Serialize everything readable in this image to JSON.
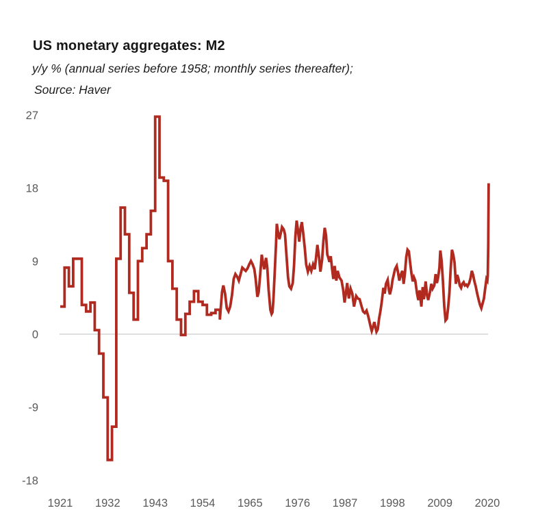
{
  "header": {
    "title": "US monetary aggregates: M2",
    "subtitle": "y/y % (annual series before 1958; monthly series thereafter);",
    "source": "Source: Haver"
  },
  "chart_data": {
    "type": "line",
    "title": "US monetary aggregates: M2",
    "subtitle": "y/y % (annual series before 1958; monthly series thereafter);",
    "source": "Source: Haver",
    "series_name": "M2 year-over-year percent change",
    "line_color": "#B02A20",
    "zero_line_color": "#D9D9D9",
    "tick_label_color": "#595959",
    "xlabel": "",
    "ylabel": "",
    "ylim": [
      -18,
      27
    ],
    "xlim": [
      1921,
      2020.5
    ],
    "y_ticks": [
      27,
      18,
      9,
      0,
      -9,
      -18
    ],
    "x_ticks": [
      1921,
      1932,
      1943,
      1954,
      1965,
      1976,
      1987,
      1998,
      2009,
      2020
    ],
    "gridlines": "zero line only",
    "legend": "none",
    "annual": {
      "start_year": 1921,
      "end_year": 1957,
      "values": [
        3.4,
        8.2,
        5.9,
        9.3,
        9.3,
        3.6,
        2.8,
        3.9,
        0.5,
        -2.4,
        -7.8,
        -15.5,
        -11.4,
        9.3,
        15.6,
        12.3,
        5.1,
        1.8,
        9.0,
        10.6,
        12.3,
        15.2,
        26.8,
        19.3,
        18.9,
        9.0,
        5.6,
        1.8,
        -0.1,
        2.5,
        4.0,
        5.3,
        4.0,
        3.6,
        2.4,
        2.6,
        3.0
      ]
    },
    "monthly": [
      [
        1958.0,
        1.8
      ],
      [
        1958.2,
        3.2
      ],
      [
        1958.5,
        5.2
      ],
      [
        1958.8,
        6.0
      ],
      [
        1959.2,
        5.0
      ],
      [
        1959.6,
        3.2
      ],
      [
        1960.0,
        2.8
      ],
      [
        1960.4,
        3.4
      ],
      [
        1960.8,
        4.8
      ],
      [
        1961.2,
        6.8
      ],
      [
        1961.6,
        7.4
      ],
      [
        1962.0,
        7.1
      ],
      [
        1962.4,
        6.6
      ],
      [
        1962.8,
        7.4
      ],
      [
        1963.2,
        8.2
      ],
      [
        1963.6,
        8.0
      ],
      [
        1964.0,
        7.8
      ],
      [
        1964.4,
        8.1
      ],
      [
        1964.8,
        8.6
      ],
      [
        1965.2,
        9.0
      ],
      [
        1965.6,
        8.6
      ],
      [
        1966.0,
        8.0
      ],
      [
        1966.3,
        6.8
      ],
      [
        1966.7,
        4.6
      ],
      [
        1967.0,
        5.2
      ],
      [
        1967.3,
        7.0
      ],
      [
        1967.7,
        9.8
      ],
      [
        1968.0,
        8.8
      ],
      [
        1968.3,
        8.0
      ],
      [
        1968.7,
        9.4
      ],
      [
        1969.0,
        8.2
      ],
      [
        1969.3,
        5.5
      ],
      [
        1969.7,
        3.0
      ],
      [
        1970.0,
        2.5
      ],
      [
        1970.2,
        2.7
      ],
      [
        1970.4,
        4.2
      ],
      [
        1970.7,
        7.5
      ],
      [
        1971.0,
        11.0
      ],
      [
        1971.2,
        13.6
      ],
      [
        1971.5,
        12.5
      ],
      [
        1971.8,
        11.7
      ],
      [
        1972.1,
        12.4
      ],
      [
        1972.4,
        13.2
      ],
      [
        1972.8,
        12.9
      ],
      [
        1973.1,
        12.3
      ],
      [
        1973.4,
        10.0
      ],
      [
        1973.8,
        7.0
      ],
      [
        1974.1,
        5.9
      ],
      [
        1974.5,
        5.6
      ],
      [
        1974.9,
        6.3
      ],
      [
        1975.2,
        8.5
      ],
      [
        1975.5,
        12.0
      ],
      [
        1975.8,
        14.0
      ],
      [
        1976.1,
        12.8
      ],
      [
        1976.4,
        11.4
      ],
      [
        1976.7,
        13.0
      ],
      [
        1977.0,
        13.8
      ],
      [
        1977.3,
        12.5
      ],
      [
        1977.7,
        10.5
      ],
      [
        1978.0,
        8.6
      ],
      [
        1978.4,
        7.7
      ],
      [
        1978.8,
        8.4
      ],
      [
        1979.2,
        7.8
      ],
      [
        1979.6,
        8.6
      ],
      [
        1980.0,
        8.0
      ],
      [
        1980.3,
        9.5
      ],
      [
        1980.6,
        11.0
      ],
      [
        1981.0,
        9.4
      ],
      [
        1981.3,
        7.7
      ],
      [
        1981.7,
        9.2
      ],
      [
        1982.0,
        11.5
      ],
      [
        1982.3,
        13.1
      ],
      [
        1982.6,
        12.2
      ],
      [
        1982.9,
        9.8
      ],
      [
        1983.1,
        9.5
      ],
      [
        1983.4,
        8.9
      ],
      [
        1983.7,
        9.6
      ],
      [
        1984.0,
        8.1
      ],
      [
        1984.3,
        6.8
      ],
      [
        1984.6,
        8.4
      ],
      [
        1985.0,
        6.6
      ],
      [
        1985.3,
        7.8
      ],
      [
        1985.7,
        7.0
      ],
      [
        1986.2,
        6.6
      ],
      [
        1986.6,
        5.4
      ],
      [
        1986.9,
        3.9
      ],
      [
        1987.2,
        5.0
      ],
      [
        1987.5,
        6.3
      ],
      [
        1987.9,
        4.4
      ],
      [
        1988.3,
        5.6
      ],
      [
        1988.7,
        5.0
      ],
      [
        1989.1,
        3.4
      ],
      [
        1989.6,
        4.7
      ],
      [
        1990.0,
        4.4
      ],
      [
        1990.4,
        4.3
      ],
      [
        1990.8,
        3.5
      ],
      [
        1991.2,
        2.8
      ],
      [
        1991.6,
        2.6
      ],
      [
        1992.0,
        2.9
      ],
      [
        1992.4,
        2.2
      ],
      [
        1992.7,
        1.5
      ],
      [
        1993.0,
        0.8
      ],
      [
        1993.2,
        0.4
      ],
      [
        1993.5,
        0.9
      ],
      [
        1993.8,
        1.5
      ],
      [
        1994.0,
        1.0
      ],
      [
        1994.3,
        0.3
      ],
      [
        1994.6,
        0.6
      ],
      [
        1994.9,
        1.9
      ],
      [
        1995.2,
        2.8
      ],
      [
        1995.5,
        3.9
      ],
      [
        1995.9,
        5.7
      ],
      [
        1996.2,
        5.0
      ],
      [
        1996.5,
        6.2
      ],
      [
        1996.9,
        6.7
      ],
      [
        1997.2,
        5.4
      ],
      [
        1997.4,
        4.9
      ],
      [
        1997.8,
        5.8
      ],
      [
        1998.0,
        6.6
      ],
      [
        1998.3,
        7.3
      ],
      [
        1998.6,
        8.0
      ],
      [
        1999.0,
        8.4
      ],
      [
        1999.3,
        7.6
      ],
      [
        1999.6,
        6.6
      ],
      [
        2000.0,
        7.4
      ],
      [
        2000.3,
        7.8
      ],
      [
        2000.6,
        6.2
      ],
      [
        2000.9,
        7.5
      ],
      [
        2001.2,
        9.5
      ],
      [
        2001.5,
        10.4
      ],
      [
        2001.8,
        10.2
      ],
      [
        2002.1,
        8.8
      ],
      [
        2002.4,
        7.5
      ],
      [
        2002.7,
        6.5
      ],
      [
        2003.0,
        7.0
      ],
      [
        2003.3,
        6.6
      ],
      [
        2003.7,
        5.0
      ],
      [
        2004.0,
        4.2
      ],
      [
        2004.3,
        5.4
      ],
      [
        2004.7,
        3.4
      ],
      [
        2005.0,
        5.8
      ],
      [
        2005.3,
        4.3
      ],
      [
        2005.7,
        6.5
      ],
      [
        2006.0,
        4.8
      ],
      [
        2006.3,
        4.2
      ],
      [
        2006.7,
        5.2
      ],
      [
        2007.0,
        6.2
      ],
      [
        2007.3,
        5.6
      ],
      [
        2007.7,
        6.0
      ],
      [
        2008.0,
        7.4
      ],
      [
        2008.3,
        6.3
      ],
      [
        2008.6,
        7.0
      ],
      [
        2008.9,
        8.2
      ],
      [
        2009.1,
        10.3
      ],
      [
        2009.4,
        9.0
      ],
      [
        2009.7,
        6.5
      ],
      [
        2010.0,
        3.5
      ],
      [
        2010.3,
        1.7
      ],
      [
        2010.6,
        1.9
      ],
      [
        2010.9,
        3.2
      ],
      [
        2011.2,
        5.0
      ],
      [
        2011.5,
        8.0
      ],
      [
        2011.8,
        10.4
      ],
      [
        2012.1,
        9.8
      ],
      [
        2012.4,
        8.8
      ],
      [
        2012.7,
        6.2
      ],
      [
        2013.0,
        7.3
      ],
      [
        2013.3,
        6.8
      ],
      [
        2013.6,
        6.0
      ],
      [
        2013.9,
        5.7
      ],
      [
        2014.2,
        6.2
      ],
      [
        2014.5,
        6.4
      ],
      [
        2014.8,
        6.0
      ],
      [
        2015.1,
        6.1
      ],
      [
        2015.4,
        5.9
      ],
      [
        2015.8,
        6.3
      ],
      [
        2016.1,
        6.9
      ],
      [
        2016.4,
        7.8
      ],
      [
        2016.7,
        7.3
      ],
      [
        2017.0,
        6.5
      ],
      [
        2017.3,
        5.9
      ],
      [
        2017.6,
        5.1
      ],
      [
        2018.0,
        4.2
      ],
      [
        2018.3,
        3.6
      ],
      [
        2018.6,
        3.2
      ],
      [
        2018.9,
        3.8
      ],
      [
        2019.2,
        4.4
      ],
      [
        2019.5,
        5.6
      ],
      [
        2019.8,
        6.8
      ],
      [
        2020.0,
        6.6
      ],
      [
        2020.1,
        7.2
      ],
      [
        2020.2,
        11.0
      ],
      [
        2020.3,
        18.6
      ]
    ]
  }
}
